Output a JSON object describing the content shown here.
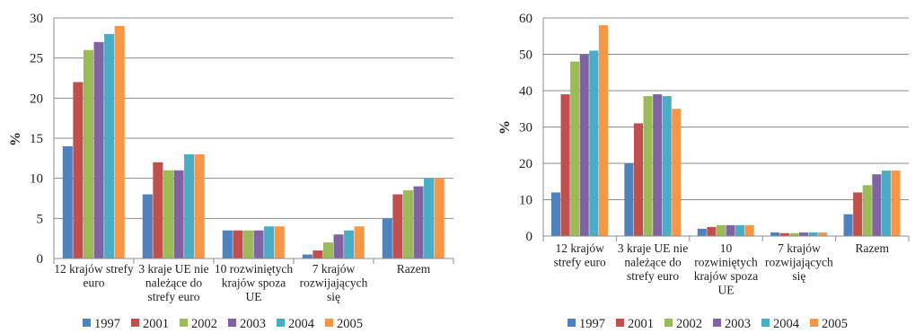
{
  "colors": {
    "1997": "#4f81bd",
    "2001": "#c0504d",
    "2002": "#9bbb59",
    "2003": "#8064a2",
    "2004": "#4bacc6",
    "2005": "#f79646",
    "grid": "#8c8c8c",
    "axis": "#8c8c8c"
  },
  "chart_data": [
    {
      "type": "bar",
      "ylabel": "%",
      "ylim": [
        0,
        30
      ],
      "yticks": [
        0,
        5,
        10,
        15,
        20,
        25,
        30
      ],
      "grid": true,
      "legend_position": "bottom",
      "categories": [
        [
          "12 krajów strefy",
          "euro"
        ],
        [
          "3 kraje UE nie",
          "należące do",
          "strefy euro"
        ],
        [
          "10 rozwiniętych",
          "krajów spoza",
          "UE"
        ],
        [
          "7 krajów",
          "rozwijających",
          "się"
        ],
        [
          "Razem"
        ]
      ],
      "series": [
        {
          "name": "1997",
          "values": [
            14,
            8,
            3.5,
            0.5,
            5
          ]
        },
        {
          "name": "2001",
          "values": [
            22,
            12,
            3.5,
            1,
            8
          ]
        },
        {
          "name": "2002",
          "values": [
            26,
            11,
            3.5,
            2,
            8.5
          ]
        },
        {
          "name": "2003",
          "values": [
            27,
            11,
            3.5,
            3,
            9
          ]
        },
        {
          "name": "2004",
          "values": [
            28,
            13,
            4,
            3.5,
            10
          ]
        },
        {
          "name": "2005",
          "values": [
            29,
            13,
            4,
            4,
            10
          ]
        }
      ]
    },
    {
      "type": "bar",
      "ylabel": "%",
      "ylim": [
        0,
        60
      ],
      "yticks": [
        0,
        10,
        20,
        30,
        40,
        50,
        60
      ],
      "grid": true,
      "legend_position": "bottom",
      "categories": [
        [
          "12 krajów",
          "strefy euro"
        ],
        [
          "3 kraje UE nie",
          "należące do",
          "strefy euro"
        ],
        [
          "10",
          "rozwiniętych",
          "krajów spoza",
          "UE"
        ],
        [
          "7 krajów",
          "rozwijających",
          "się"
        ],
        [
          "Razem"
        ]
      ],
      "series": [
        {
          "name": "1997",
          "values": [
            12,
            20,
            2,
            1,
            6
          ]
        },
        {
          "name": "2001",
          "values": [
            39,
            31,
            2.5,
            0.8,
            12
          ]
        },
        {
          "name": "2002",
          "values": [
            48,
            38.5,
            3,
            0.8,
            14
          ]
        },
        {
          "name": "2003",
          "values": [
            50,
            39,
            3,
            1,
            17
          ]
        },
        {
          "name": "2004",
          "values": [
            51,
            38.5,
            3,
            1,
            18
          ]
        },
        {
          "name": "2005",
          "values": [
            58,
            35,
            3,
            1,
            18
          ]
        }
      ]
    }
  ]
}
